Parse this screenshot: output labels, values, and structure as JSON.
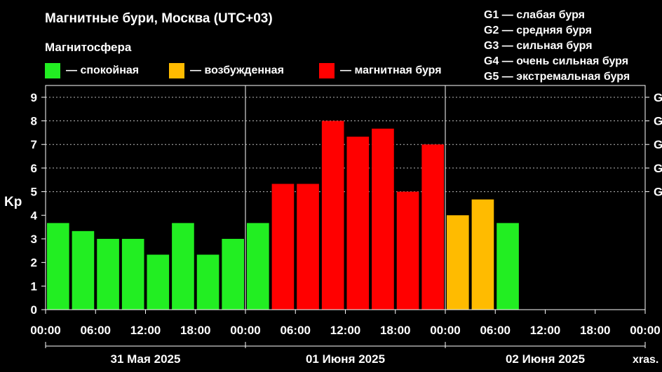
{
  "title": "Магнитные бури, Москва (UTC+03)",
  "subtitle": "Магнитосфера",
  "legend": [
    {
      "label": "— спокойная",
      "color": "#22ee22"
    },
    {
      "label": "— возбужденная",
      "color": "#ffbb00"
    },
    {
      "label": "— магнитная буря",
      "color": "#ff0000"
    }
  ],
  "g_scale": [
    "G1 — слабая буря",
    "G2 — средняя буря",
    "G3 — сильная буря",
    "G4 — очень сильная буря",
    "G5 — экстремальная буря"
  ],
  "watermark": "xras.",
  "chart_data": {
    "type": "bar",
    "ylabel": "Kp",
    "ylim": [
      0,
      9.5
    ],
    "yticks": [
      0,
      1,
      2,
      3,
      4,
      5,
      6,
      7,
      8,
      9
    ],
    "right_tick_labels": [
      "G",
      "G",
      "G",
      "G",
      "G"
    ],
    "xticks": [
      "00:00",
      "06:00",
      "12:00",
      "18:00",
      "00:00",
      "06:00",
      "12:00",
      "18:00",
      "00:00",
      "06:00",
      "12:00",
      "18:00",
      "00:00"
    ],
    "days": [
      "31 Мая 2025",
      "01 Июня 2025",
      "02 Июня 2025"
    ],
    "grid": "dotted horizontal at Kp 5–9",
    "slots_total": 24,
    "values": [
      3.67,
      3.33,
      3.0,
      3.0,
      2.33,
      3.67,
      2.33,
      3.0,
      3.67,
      5.33,
      5.33,
      8.0,
      7.33,
      7.67,
      5.0,
      7.0,
      4.0,
      4.67,
      3.67
    ],
    "colors": [
      "#22ee22",
      "#22ee22",
      "#22ee22",
      "#22ee22",
      "#22ee22",
      "#22ee22",
      "#22ee22",
      "#22ee22",
      "#22ee22",
      "#ff0000",
      "#ff0000",
      "#ff0000",
      "#ff0000",
      "#ff0000",
      "#ff0000",
      "#ff0000",
      "#ffbb00",
      "#ffbb00",
      "#22ee22"
    ]
  }
}
